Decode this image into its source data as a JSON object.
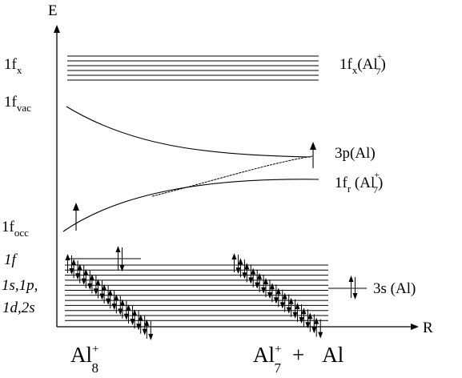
{
  "axes": {
    "y_label": "E",
    "x_label": "R"
  },
  "left_labels": {
    "fx": {
      "main": "1f",
      "sub": "x"
    },
    "fvac": {
      "main": "1f",
      "sub": "vac"
    },
    "focc": {
      "main": "1f",
      "sub": "occ"
    },
    "f": {
      "main": "1f"
    },
    "sp": {
      "main": "1s,1p,"
    },
    "ds": {
      "main": "1d,2s"
    }
  },
  "right_labels": {
    "fx_al7": {
      "prefix": "1f",
      "sub": "x",
      "paren_open": "(Al",
      "sup": "+",
      "sub2": "7",
      "paren_close": ")"
    },
    "p_al": {
      "prefix": "3p",
      "paren": "(Al)"
    },
    "fr_al7": {
      "prefix": "1f",
      "sub": "r",
      "paren_open": " (Al",
      "sup": "+",
      "sub2": "7",
      "paren_close": ")"
    },
    "s_al": {
      "prefix": "3s",
      "paren": " (Al)"
    }
  },
  "bottom_labels": {
    "al8": {
      "main": "Al",
      "sup": "+",
      "sub": "8"
    },
    "al7_plus_al": {
      "main": "Al",
      "sup": "+",
      "sub": "7",
      "plus": "+",
      "tail": "Al"
    }
  },
  "colors": {
    "line": "#000000",
    "background": "#ffffff"
  }
}
